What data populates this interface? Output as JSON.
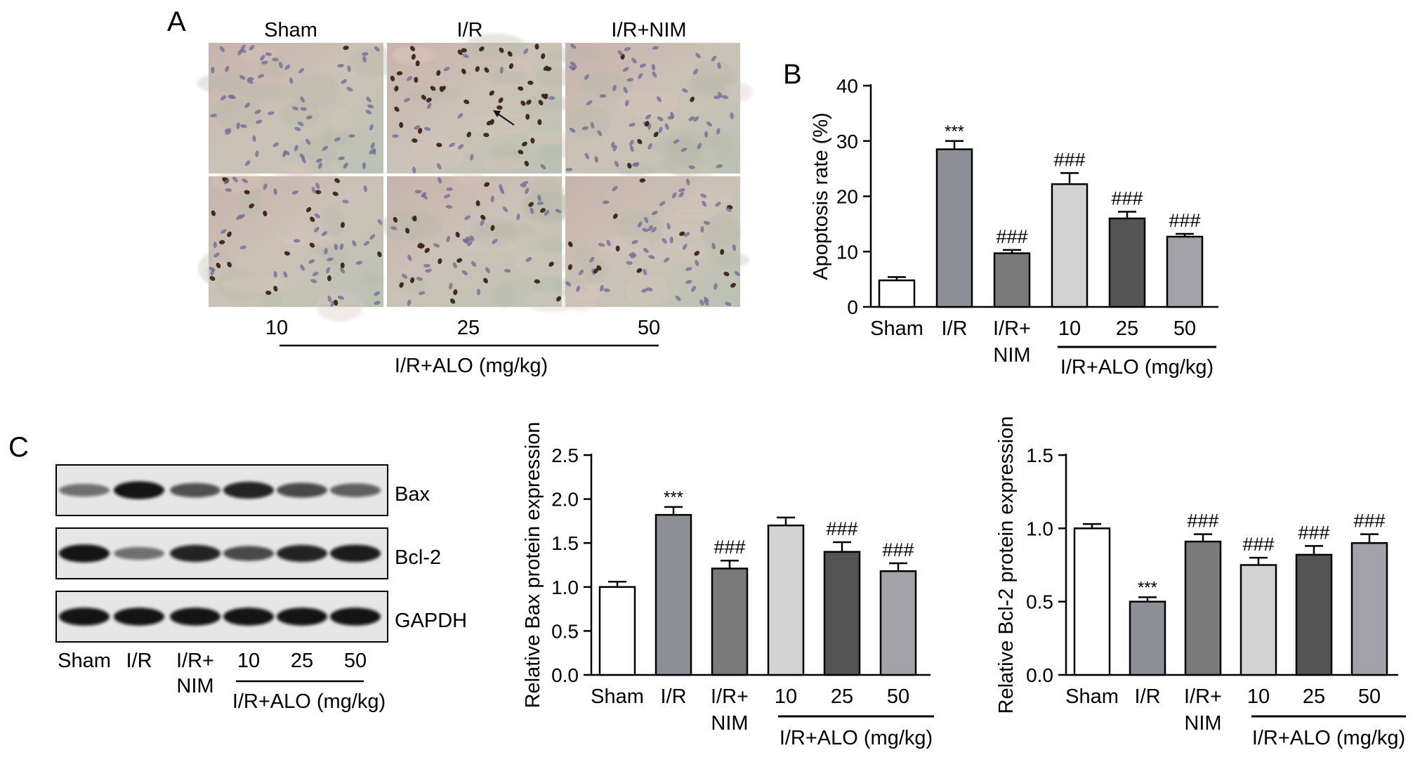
{
  "panels": {
    "a": {
      "letter": "A",
      "col_headers": [
        "Sham",
        "I/R",
        "I/R+NIM"
      ],
      "bottom_labels": [
        "10",
        "25",
        "50"
      ],
      "group_label": "I/R+ALO (mg/kg)"
    },
    "c": {
      "letter": "C",
      "blot_labels": [
        "Bax",
        "Bcl-2",
        "GAPDH"
      ],
      "lane_labels": [
        "Sham",
        "I/R",
        "I/R+",
        "10",
        "25",
        "50"
      ],
      "lane_sub": "NIM",
      "group_label": "I/R+ALO (mg/kg)"
    }
  },
  "chart_data": [
    {
      "id": "B",
      "letter": "B",
      "type": "bar",
      "categories": [
        "Sham",
        "I/R",
        "I/R+NIM",
        "10",
        "25",
        "50"
      ],
      "values": [
        4.8,
        28.5,
        9.7,
        22.2,
        16.0,
        12.7
      ],
      "errors": [
        0.6,
        1.5,
        0.6,
        2.0,
        1.2,
        0.5
      ],
      "significance": [
        "",
        "***",
        "###",
        "###",
        "###",
        "###"
      ],
      "ylabel": "Apoptosis rate (%)",
      "ylim": [
        0,
        40
      ],
      "yticks": [
        "0",
        "10",
        "20",
        "30",
        "40"
      ],
      "tick_labels": [
        "Sham",
        "I/R",
        "I/R+",
        "10",
        "25",
        "50"
      ],
      "tick_sub": "NIM",
      "group_label": "I/R+ALO (mg/kg)",
      "bar_colors": [
        "#ffffff",
        "#8e8e96",
        "#7a7a7a",
        "#d3d3d3",
        "#545454",
        "#a2a2a8"
      ]
    },
    {
      "id": "C1",
      "type": "bar",
      "categories": [
        "Sham",
        "I/R",
        "I/R+NIM",
        "10",
        "25",
        "50"
      ],
      "values": [
        1.0,
        1.82,
        1.21,
        1.7,
        1.4,
        1.18
      ],
      "errors": [
        0.06,
        0.09,
        0.09,
        0.09,
        0.11,
        0.09
      ],
      "significance": [
        "",
        "***",
        "###",
        "",
        "###",
        "###"
      ],
      "ylabel": "Relative Bax protein expression",
      "ylim": [
        0,
        2.5
      ],
      "yticks": [
        "0.0",
        "0.5",
        "1.0",
        "1.5",
        "2.0",
        "2.5"
      ],
      "tick_labels": [
        "Sham",
        "I/R",
        "I/R+",
        "10",
        "25",
        "50"
      ],
      "tick_sub": "NIM",
      "group_label": "I/R+ALO (mg/kg)",
      "bar_colors": [
        "#ffffff",
        "#8e8e96",
        "#7a7a7a",
        "#d3d3d3",
        "#545454",
        "#a2a2a8"
      ]
    },
    {
      "id": "C2",
      "type": "bar",
      "categories": [
        "Sham",
        "I/R",
        "I/R+NIM",
        "10",
        "25",
        "50"
      ],
      "values": [
        1.0,
        0.5,
        0.91,
        0.75,
        0.82,
        0.9
      ],
      "errors": [
        0.03,
        0.03,
        0.05,
        0.05,
        0.06,
        0.06
      ],
      "significance": [
        "",
        "***",
        "###",
        "###",
        "###",
        "###"
      ],
      "ylabel": "Relative Bcl-2 protein expression",
      "ylim": [
        0,
        1.5
      ],
      "yticks": [
        "0.0",
        "0.5",
        "1.0",
        "1.5"
      ],
      "tick_labels": [
        "Sham",
        "I/R",
        "I/R+",
        "10",
        "25",
        "50"
      ],
      "tick_sub": "NIM",
      "group_label": "I/R+ALO (mg/kg)",
      "bar_colors": [
        "#ffffff",
        "#8e8e96",
        "#7a7a7a",
        "#d3d3d3",
        "#545454",
        "#a2a2a8"
      ]
    }
  ]
}
